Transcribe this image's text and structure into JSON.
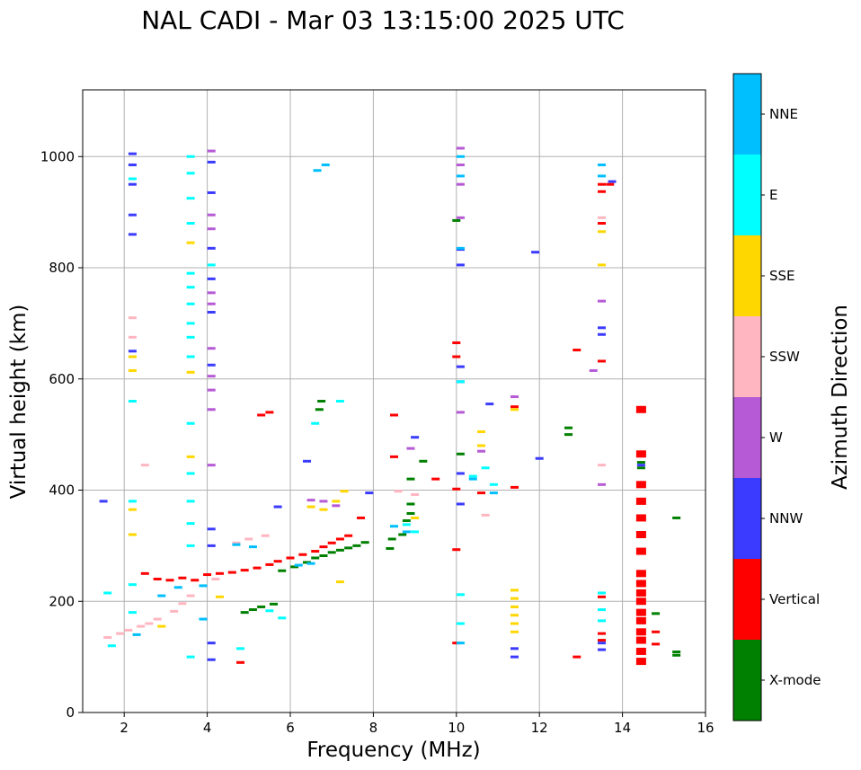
{
  "chart_data": {
    "type": "scatter",
    "title": "NAL CADI - Mar 03 13:15:00 2025 UTC",
    "xlabel": "Frequency (MHz)",
    "ylabel": "Virtual height (km)",
    "xlim": [
      1,
      16
    ],
    "ylim": [
      0,
      1120
    ],
    "xticks": [
      2,
      4,
      6,
      8,
      10,
      12,
      14,
      16
    ],
    "yticks": [
      0,
      200,
      400,
      600,
      800,
      1000
    ],
    "grid": true,
    "colorbar": {
      "title": "Azimuth Direction",
      "position": "right",
      "categories": [
        {
          "name": "X-mode",
          "color": "#008000"
        },
        {
          "name": "Vertical",
          "color": "#ff0000"
        },
        {
          "name": "NNW",
          "color": "#3b3bff"
        },
        {
          "name": "W",
          "color": "#b65ad6"
        },
        {
          "name": "SSW",
          "color": "#ffb6c1"
        },
        {
          "name": "SSE",
          "color": "#ffd700"
        },
        {
          "name": "E",
          "color": "#00ffff"
        },
        {
          "name": "NNE",
          "color": "#00bfff"
        }
      ]
    },
    "series": [
      {
        "name": "X-mode",
        "points": [
          [
            4.9,
            180
          ],
          [
            5.1,
            185
          ],
          [
            5.3,
            190
          ],
          [
            5.6,
            195
          ],
          [
            5.8,
            255
          ],
          [
            6.1,
            262
          ],
          [
            6.4,
            270
          ],
          [
            6.6,
            278
          ],
          [
            6.8,
            282
          ],
          [
            7.0,
            288
          ],
          [
            7.2,
            292
          ],
          [
            7.4,
            296
          ],
          [
            7.6,
            300
          ],
          [
            7.8,
            306
          ],
          [
            8.4,
            295
          ],
          [
            8.45,
            312
          ],
          [
            8.7,
            320
          ],
          [
            8.8,
            345
          ],
          [
            8.9,
            358
          ],
          [
            8.9,
            375
          ],
          [
            8.9,
            420
          ],
          [
            9.2,
            452
          ],
          [
            6.7,
            545
          ],
          [
            6.75,
            560
          ],
          [
            12.7,
            500
          ],
          [
            12.7,
            512
          ],
          [
            15.3,
            350
          ],
          [
            15.3,
            103
          ],
          [
            15.3,
            109
          ],
          [
            14.8,
            178
          ],
          [
            10.1,
            465
          ],
          [
            10.0,
            885
          ],
          [
            14.45,
            450
          ],
          [
            14.45,
            440
          ]
        ]
      },
      {
        "name": "Vertical",
        "points": [
          [
            2.5,
            250
          ],
          [
            2.8,
            240
          ],
          [
            3.1,
            238
          ],
          [
            3.4,
            242
          ],
          [
            3.7,
            238
          ],
          [
            4.0,
            248
          ],
          [
            4.3,
            250
          ],
          [
            4.6,
            252
          ],
          [
            4.9,
            256
          ],
          [
            5.2,
            260
          ],
          [
            5.5,
            266
          ],
          [
            5.7,
            272
          ],
          [
            6.0,
            278
          ],
          [
            6.3,
            284
          ],
          [
            6.6,
            290
          ],
          [
            6.8,
            298
          ],
          [
            7.0,
            305
          ],
          [
            7.2,
            312
          ],
          [
            7.4,
            318
          ],
          [
            7.7,
            350
          ],
          [
            8.5,
            460
          ],
          [
            8.5,
            535
          ],
          [
            9.5,
            420
          ],
          [
            10.0,
            665
          ],
          [
            10.0,
            640
          ],
          [
            10.0,
            402
          ],
          [
            10.0,
            293
          ],
          [
            10.0,
            125
          ],
          [
            5.3,
            535
          ],
          [
            5.5,
            540
          ],
          [
            13.5,
            950
          ],
          [
            13.5,
            937
          ],
          [
            13.5,
            880
          ],
          [
            13.5,
            632
          ],
          [
            13.5,
            208
          ],
          [
            13.5,
            142
          ],
          [
            13.5,
            130
          ],
          [
            13.7,
            950
          ],
          [
            12.9,
            652
          ],
          [
            12.9,
            100
          ],
          [
            4.8,
            90
          ],
          [
            11.4,
            405
          ],
          [
            11.4,
            550
          ],
          [
            10.6,
            395
          ],
          [
            14.8,
            145
          ],
          [
            14.8,
            123
          ]
        ]
      },
      {
        "name": "NNW",
        "points": [
          [
            2.2,
            1005
          ],
          [
            2.2,
            985
          ],
          [
            2.2,
            950
          ],
          [
            2.2,
            895
          ],
          [
            2.2,
            860
          ],
          [
            2.2,
            650
          ],
          [
            4.1,
            990
          ],
          [
            4.1,
            935
          ],
          [
            4.1,
            835
          ],
          [
            4.1,
            780
          ],
          [
            4.1,
            720
          ],
          [
            4.1,
            625
          ],
          [
            4.1,
            330
          ],
          [
            4.1,
            300
          ],
          [
            4.1,
            125
          ],
          [
            4.1,
            95
          ],
          [
            1.5,
            380
          ],
          [
            10.1,
            833
          ],
          [
            10.1,
            805
          ],
          [
            10.1,
            622
          ],
          [
            10.1,
            595
          ],
          [
            10.1,
            430
          ],
          [
            10.1,
            375
          ],
          [
            13.5,
            692
          ],
          [
            13.5,
            680
          ],
          [
            13.5,
            125
          ],
          [
            13.5,
            113
          ],
          [
            13.75,
            955
          ],
          [
            11.9,
            828
          ],
          [
            12.0,
            457
          ],
          [
            11.4,
            115
          ],
          [
            11.4,
            100
          ],
          [
            9.0,
            495
          ],
          [
            6.4,
            452
          ],
          [
            5.7,
            370
          ],
          [
            7.9,
            395
          ],
          [
            10.8,
            555
          ],
          [
            14.45,
            445
          ]
        ]
      },
      {
        "name": "W",
        "points": [
          [
            4.1,
            1010
          ],
          [
            4.1,
            895
          ],
          [
            4.1,
            870
          ],
          [
            4.1,
            755
          ],
          [
            4.1,
            735
          ],
          [
            4.1,
            655
          ],
          [
            4.1,
            605
          ],
          [
            4.1,
            580
          ],
          [
            4.1,
            545
          ],
          [
            4.1,
            445
          ],
          [
            10.1,
            1015
          ],
          [
            10.1,
            985
          ],
          [
            10.1,
            950
          ],
          [
            10.1,
            890
          ],
          [
            10.1,
            540
          ],
          [
            13.5,
            740
          ],
          [
            13.5,
            410
          ],
          [
            13.3,
            615
          ],
          [
            8.9,
            475
          ],
          [
            10.6,
            470
          ],
          [
            11.4,
            568
          ],
          [
            6.5,
            382
          ],
          [
            6.8,
            380
          ],
          [
            7.1,
            372
          ]
        ]
      },
      {
        "name": "SSW",
        "points": [
          [
            1.6,
            135
          ],
          [
            1.9,
            142
          ],
          [
            2.1,
            148
          ],
          [
            2.4,
            155
          ],
          [
            2.6,
            160
          ],
          [
            2.8,
            168
          ],
          [
            3.2,
            182
          ],
          [
            3.4,
            196
          ],
          [
            3.6,
            210
          ],
          [
            4.2,
            240
          ],
          [
            4.7,
            305
          ],
          [
            5.0,
            312
          ],
          [
            5.4,
            318
          ],
          [
            2.5,
            445
          ],
          [
            8.6,
            398
          ],
          [
            9.0,
            392
          ],
          [
            10.7,
            355
          ],
          [
            13.5,
            890
          ],
          [
            13.5,
            445
          ],
          [
            2.2,
            710
          ],
          [
            2.2,
            675
          ]
        ]
      },
      {
        "name": "SSE",
        "points": [
          [
            2.2,
            640
          ],
          [
            2.2,
            615
          ],
          [
            2.2,
            365
          ],
          [
            2.2,
            320
          ],
          [
            3.6,
            845
          ],
          [
            3.6,
            460
          ],
          [
            3.6,
            612
          ],
          [
            6.5,
            370
          ],
          [
            6.8,
            365
          ],
          [
            7.1,
            380
          ],
          [
            7.3,
            398
          ],
          [
            7.2,
            235
          ],
          [
            11.4,
            220
          ],
          [
            11.4,
            205
          ],
          [
            11.4,
            190
          ],
          [
            11.4,
            175
          ],
          [
            11.4,
            160
          ],
          [
            11.4,
            145
          ],
          [
            10.6,
            505
          ],
          [
            10.6,
            480
          ],
          [
            11.4,
            545
          ],
          [
            13.5,
            865
          ],
          [
            13.5,
            805
          ],
          [
            9.0,
            350
          ],
          [
            2.9,
            155
          ],
          [
            4.3,
            208
          ]
        ]
      },
      {
        "name": "E",
        "points": [
          [
            2.2,
            960
          ],
          [
            2.2,
            560
          ],
          [
            2.2,
            380
          ],
          [
            2.2,
            230
          ],
          [
            2.2,
            180
          ],
          [
            1.6,
            215
          ],
          [
            1.7,
            120
          ],
          [
            3.6,
            1000
          ],
          [
            3.6,
            970
          ],
          [
            3.6,
            925
          ],
          [
            3.6,
            880
          ],
          [
            3.6,
            790
          ],
          [
            3.6,
            765
          ],
          [
            3.6,
            735
          ],
          [
            3.6,
            700
          ],
          [
            3.6,
            675
          ],
          [
            3.6,
            640
          ],
          [
            3.6,
            520
          ],
          [
            3.6,
            430
          ],
          [
            3.6,
            380
          ],
          [
            3.6,
            340
          ],
          [
            3.6,
            300
          ],
          [
            3.6,
            100
          ],
          [
            4.1,
            805
          ],
          [
            10.1,
            595
          ],
          [
            10.1,
            212
          ],
          [
            10.1,
            160
          ],
          [
            13.5,
            215
          ],
          [
            13.5,
            185
          ],
          [
            13.5,
            165
          ],
          [
            7.2,
            560
          ],
          [
            6.6,
            520
          ],
          [
            8.8,
            338
          ],
          [
            9.0,
            325
          ],
          [
            10.4,
            425
          ],
          [
            10.7,
            440
          ],
          [
            10.9,
            410
          ],
          [
            4.8,
            115
          ],
          [
            5.8,
            170
          ],
          [
            5.5,
            183
          ]
        ]
      },
      {
        "name": "NNE",
        "points": [
          [
            6.65,
            975
          ],
          [
            6.85,
            985
          ],
          [
            10.1,
            1000
          ],
          [
            10.1,
            965
          ],
          [
            10.1,
            835
          ],
          [
            13.5,
            985
          ],
          [
            13.5,
            965
          ],
          [
            2.3,
            140
          ],
          [
            2.9,
            210
          ],
          [
            3.3,
            225
          ],
          [
            3.9,
            228
          ],
          [
            4.7,
            302
          ],
          [
            5.1,
            298
          ],
          [
            6.2,
            265
          ],
          [
            6.5,
            268
          ],
          [
            8.5,
            335
          ],
          [
            8.8,
            325
          ],
          [
            10.4,
            420
          ],
          [
            10.9,
            395
          ],
          [
            3.9,
            168
          ],
          [
            10.1,
            125
          ]
        ]
      },
      {
        "name": "Vertical-column",
        "points": [
          [
            14.45,
            545
          ],
          [
            14.45,
            465
          ],
          [
            14.45,
            410
          ],
          [
            14.45,
            380
          ],
          [
            14.45,
            350
          ],
          [
            14.45,
            320
          ],
          [
            14.45,
            290
          ],
          [
            14.45,
            250
          ],
          [
            14.45,
            232
          ],
          [
            14.45,
            215
          ],
          [
            14.45,
            200
          ],
          [
            14.45,
            180
          ],
          [
            14.45,
            165
          ],
          [
            14.45,
            145
          ],
          [
            14.45,
            130
          ],
          [
            14.45,
            110
          ],
          [
            14.45,
            92
          ]
        ]
      }
    ]
  }
}
